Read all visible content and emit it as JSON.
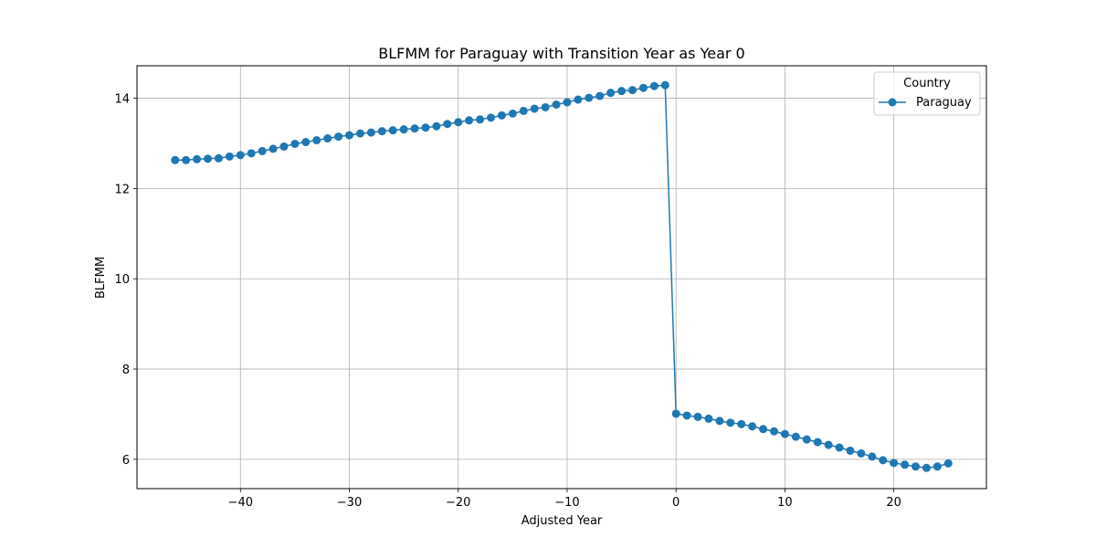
{
  "chart_data": {
    "type": "line",
    "title": "BLFMM for Paraguay with Transition Year as Year 0",
    "xlabel": "Adjusted Year",
    "ylabel": "BLFMM",
    "xlim": [
      -49.5,
      28.5
    ],
    "ylim": [
      5.35,
      14.72
    ],
    "x_ticks": [
      -40,
      -30,
      -20,
      -10,
      0,
      10,
      20
    ],
    "x_tick_labels": [
      "−40",
      "−30",
      "−20",
      "−10",
      "0",
      "10",
      "20"
    ],
    "y_ticks": [
      6,
      8,
      10,
      12,
      14
    ],
    "y_tick_labels": [
      "6",
      "8",
      "10",
      "12",
      "14"
    ],
    "grid": true,
    "legend": {
      "title": "Country",
      "placement": "top-right"
    },
    "marker": "circle",
    "series": [
      {
        "name": "Paraguay",
        "color": "#1f77b4",
        "x": [
          -46,
          -45,
          -44,
          -43,
          -42,
          -41,
          -40,
          -39,
          -38,
          -37,
          -36,
          -35,
          -34,
          -33,
          -32,
          -31,
          -30,
          -29,
          -28,
          -27,
          -26,
          -25,
          -24,
          -23,
          -22,
          -21,
          -20,
          -19,
          -18,
          -17,
          -16,
          -15,
          -14,
          -13,
          -12,
          -11,
          -10,
          -9,
          -8,
          -7,
          -6,
          -5,
          -4,
          -3,
          -2,
          -1,
          0,
          1,
          2,
          3,
          4,
          5,
          6,
          7,
          8,
          9,
          10,
          11,
          12,
          13,
          14,
          15,
          16,
          17,
          18,
          19,
          20,
          21,
          22,
          23,
          24,
          25
        ],
        "y": [
          12.63,
          12.63,
          12.65,
          12.66,
          12.67,
          12.71,
          12.74,
          12.78,
          12.83,
          12.88,
          12.93,
          12.99,
          13.03,
          13.07,
          13.11,
          13.15,
          13.18,
          13.22,
          13.24,
          13.27,
          13.29,
          13.31,
          13.33,
          13.35,
          13.38,
          13.43,
          13.47,
          13.51,
          13.53,
          13.57,
          13.62,
          13.66,
          13.72,
          13.77,
          13.8,
          13.86,
          13.91,
          13.97,
          14.01,
          14.05,
          14.12,
          14.16,
          14.18,
          14.23,
          14.27,
          14.29,
          7.01,
          6.97,
          6.94,
          6.9,
          6.85,
          6.81,
          6.78,
          6.73,
          6.67,
          6.62,
          6.56,
          6.5,
          6.44,
          6.38,
          6.32,
          6.26,
          6.19,
          6.13,
          6.06,
          5.98,
          5.92,
          5.88,
          5.84,
          5.81,
          5.84,
          5.91
        ]
      }
    ]
  }
}
